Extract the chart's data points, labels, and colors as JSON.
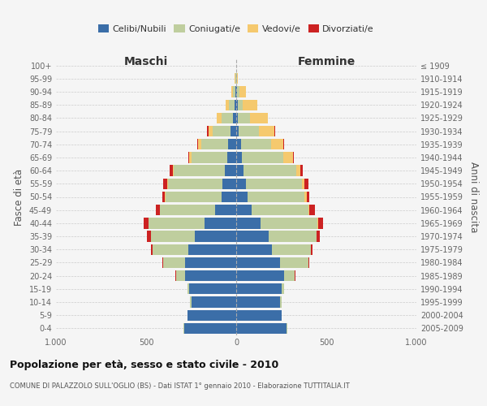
{
  "age_groups": [
    "0-4",
    "5-9",
    "10-14",
    "15-19",
    "20-24",
    "25-29",
    "30-34",
    "35-39",
    "40-44",
    "45-49",
    "50-54",
    "55-59",
    "60-64",
    "65-69",
    "70-74",
    "75-79",
    "80-84",
    "85-89",
    "90-94",
    "95-99",
    "100+"
  ],
  "birth_years": [
    "2005-2009",
    "2000-2004",
    "1995-1999",
    "1990-1994",
    "1985-1989",
    "1980-1984",
    "1975-1979",
    "1970-1974",
    "1965-1969",
    "1960-1964",
    "1955-1959",
    "1950-1954",
    "1945-1949",
    "1940-1944",
    "1935-1939",
    "1930-1934",
    "1925-1929",
    "1920-1924",
    "1915-1919",
    "1910-1914",
    "≤ 1909"
  ],
  "maschi": {
    "celibi": [
      290,
      270,
      250,
      260,
      285,
      285,
      265,
      230,
      175,
      115,
      80,
      75,
      65,
      50,
      45,
      30,
      20,
      10,
      5,
      2,
      0
    ],
    "coniugati": [
      5,
      0,
      5,
      10,
      50,
      120,
      200,
      245,
      310,
      310,
      310,
      305,
      280,
      200,
      150,
      100,
      60,
      30,
      15,
      3,
      0
    ],
    "vedovi": [
      0,
      0,
      0,
      0,
      0,
      0,
      0,
      0,
      0,
      0,
      5,
      5,
      5,
      10,
      15,
      25,
      30,
      20,
      8,
      2,
      0
    ],
    "divorziati": [
      0,
      0,
      0,
      0,
      5,
      5,
      10,
      20,
      30,
      20,
      15,
      20,
      20,
      5,
      5,
      5,
      0,
      0,
      0,
      0,
      0
    ]
  },
  "femmine": {
    "nubili": [
      280,
      250,
      245,
      250,
      265,
      245,
      200,
      180,
      135,
      85,
      65,
      55,
      40,
      30,
      25,
      15,
      10,
      8,
      5,
      2,
      0
    ],
    "coniugate": [
      5,
      0,
      5,
      15,
      60,
      155,
      215,
      265,
      315,
      315,
      315,
      310,
      295,
      230,
      170,
      110,
      65,
      30,
      15,
      2,
      0
    ],
    "vedove": [
      0,
      0,
      0,
      0,
      0,
      0,
      0,
      0,
      5,
      5,
      10,
      15,
      20,
      55,
      65,
      85,
      100,
      80,
      35,
      5,
      0
    ],
    "divorziate": [
      0,
      0,
      0,
      0,
      5,
      5,
      10,
      20,
      25,
      30,
      15,
      20,
      15,
      5,
      5,
      5,
      0,
      0,
      0,
      0,
      0
    ]
  },
  "colors": {
    "celibi": "#3b6ea8",
    "coniugati": "#bfce9e",
    "vedovi": "#f5c96e",
    "divorziati": "#cc2222"
  },
  "xlim": 1000,
  "title": "Popolazione per età, sesso e stato civile - 2010",
  "subtitle": "COMUNE DI PALAZZOLO SULL'OGLIO (BS) - Dati ISTAT 1° gennaio 2010 - Elaborazione TUTTITALIA.IT",
  "ylabel_left": "Fasce di età",
  "ylabel_right": "Anni di nascita",
  "xlabel_left": "Maschi",
  "xlabel_right": "Femmine",
  "bg_color": "#f5f5f5",
  "grid_color": "#cccccc"
}
